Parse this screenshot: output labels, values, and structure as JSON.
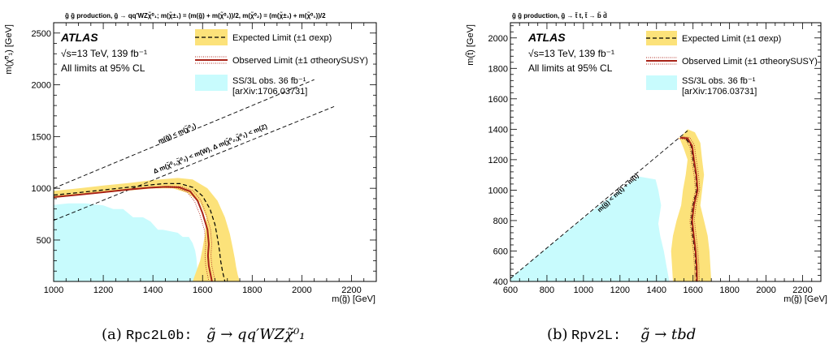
{
  "chart_data": [
    {
      "type": "line",
      "panel_header": "g̃ g̃ production, g̃ → qq′WZχ̃⁰₁; m(χ̃±₁) = (m(g̃) + m(χ̃⁰₁))/2, m(χ̃⁰₂) = (m(χ̃±₁) + m(χ̃⁰₁))/2",
      "caption_label": "(a)",
      "caption_name": "Rpc2L0b:",
      "caption_formula": "g̃ → qq′WZχ̃⁰₁",
      "xlabel": "m(g̃) [GeV]",
      "ylabel": "m(χ̃⁰₁) [GeV]",
      "xlim": [
        1000,
        2300
      ],
      "ylim": [
        100,
        2600
      ],
      "x_ticks": [
        1000,
        1200,
        1400,
        1600,
        1800,
        2000,
        2200
      ],
      "y_ticks": [
        500,
        1000,
        1500,
        2000,
        2500
      ],
      "experiment": "ATLAS",
      "energy": "√s=13 TeV, 139 fb⁻¹",
      "cl_note": "All limits at 95% CL",
      "legend": {
        "placement": "top-right",
        "expected": "Expected Limit (±1 σexp)",
        "observed": "Observed Limit (±1 σtheorySUSY)",
        "previous_line1": "SS/3L obs. 36 fb⁻¹",
        "previous_line2": "[arXiv:1706.03731]"
      },
      "annotations": [
        "m(g̃) < m(χ̃⁰₁)",
        "Δ m(χ̃⁰₁,χ̃⁰₂) < m(W), Δ m(χ̃⁰₂,χ̃⁰₁) < m(Z)"
      ],
      "boundary_lines": [
        {
          "x": [
            1000,
            2050
          ],
          "y": [
            1000,
            2050
          ]
        },
        {
          "x": [
            1000,
            2130
          ],
          "y": [
            690,
            1790
          ]
        }
      ],
      "previous_limit": {
        "x": [
          1000,
          1060,
          1130,
          1200,
          1240,
          1280,
          1300,
          1320,
          1360,
          1390,
          1420,
          1440,
          1500,
          1520,
          1545,
          1560,
          1570,
          1575,
          1578,
          1580,
          1585,
          1590,
          1000
        ],
        "y": [
          840,
          855,
          855,
          835,
          800,
          800,
          760,
          720,
          720,
          680,
          600,
          600,
          570,
          530,
          530,
          470,
          400,
          330,
          250,
          180,
          130,
          100,
          100
        ]
      },
      "expected": {
        "x": [
          1000,
          1100,
          1200,
          1300,
          1380,
          1450,
          1510,
          1560,
          1600,
          1630,
          1650,
          1660,
          1668,
          1673,
          1680,
          1690
        ],
        "y": [
          935,
          958,
          984,
          1010,
          1030,
          1046,
          1045,
          1010,
          925,
          800,
          650,
          520,
          400,
          300,
          200,
          100
        ]
      },
      "expected_band_upper": {
        "x": [
          1000,
          1100,
          1200,
          1300,
          1400,
          1500,
          1560,
          1620,
          1660,
          1690,
          1710,
          1722,
          1730,
          1735,
          1742,
          1750
        ],
        "y": [
          975,
          1000,
          1026,
          1050,
          1080,
          1100,
          1085,
          1000,
          880,
          720,
          560,
          420,
          320,
          240,
          160,
          100
        ]
      },
      "expected_band_lower": {
        "x": [
          1560,
          1575,
          1590,
          1600,
          1610,
          1615,
          1590,
          1540,
          1480,
          1400,
          1300,
          1200,
          1100,
          1000
        ],
        "y": [
          100,
          200,
          300,
          420,
          560,
          720,
          860,
          955,
          1000,
          1000,
          978,
          955,
          932,
          905
        ]
      },
      "observed": {
        "x": [
          1000,
          1100,
          1200,
          1300,
          1380,
          1450,
          1505,
          1550,
          1580,
          1600,
          1620,
          1625,
          1622,
          1625,
          1632,
          1638
        ],
        "y": [
          915,
          938,
          962,
          988,
          1005,
          1014,
          1010,
          970,
          880,
          760,
          600,
          460,
          350,
          250,
          170,
          100
        ]
      },
      "observed_theory_shift": 12
    },
    {
      "type": "line",
      "panel_header": "g̃ g̃ production, g̃ → t̃ t, t̃ → b̃ d̃",
      "caption_label": "(b)",
      "caption_name": "Rpv2L:",
      "caption_formula": "g̃ → tbd",
      "xlabel": "m(g̃) [GeV]",
      "ylabel": "m(t̃) [GeV]",
      "xlim": [
        600,
        2300
      ],
      "ylim": [
        400,
        2100
      ],
      "x_ticks": [
        600,
        800,
        1000,
        1200,
        1400,
        1600,
        1800,
        2000,
        2200
      ],
      "y_ticks": [
        400,
        600,
        800,
        1000,
        1200,
        1400,
        1600,
        1800,
        2000
      ],
      "experiment": "ATLAS",
      "energy": "√s=13 TeV, 139 fb⁻¹",
      "cl_note": "All limits at 95% CL",
      "legend": {
        "placement": "top-right",
        "expected": "Expected Limit (±1 σexp)",
        "observed": "Observed Limit (±1 σtheorySUSY)",
        "previous_line1": "SS/3L obs. 36 fb⁻¹",
        "previous_line2": "[arXiv:1706.03731]"
      },
      "annotations": [
        "m(g̃) < m(t̃) + m(t)"
      ],
      "boundary_lines": [
        {
          "x": [
            600,
            1570
          ],
          "y": [
            420,
            1390
          ]
        }
      ],
      "previous_limit": {
        "x": [
          600,
          1050,
          1300,
          1395,
          1410,
          1425,
          1410,
          1420,
          1440,
          1455,
          1470,
          600
        ],
        "y": [
          420,
          865,
          1090,
          1070,
          1000,
          900,
          780,
          700,
          600,
          500,
          400,
          400
        ]
      },
      "expected": {
        "x": [
          1530,
          1560,
          1590,
          1600,
          1615,
          1620,
          1600,
          1590,
          1598,
          1610,
          1615,
          1618
        ],
        "y": [
          1345,
          1340,
          1290,
          1200,
          1100,
          1000,
          900,
          800,
          700,
          600,
          500,
          400
        ]
      },
      "expected_band_outer": {
        "x": [
          1530,
          1570,
          1610,
          1640,
          1650,
          1660,
          1650,
          1640,
          1660,
          1680,
          1690,
          1700
        ],
        "y": [
          1345,
          1400,
          1380,
          1310,
          1200,
          1100,
          1000,
          900,
          800,
          700,
          600,
          400
        ]
      },
      "expected_band_inner": {
        "x": [
          1520,
          1530,
          1550,
          1570,
          1560,
          1545,
          1535,
          1510,
          1490,
          1480,
          1485,
          1490
        ],
        "y": [
          1345,
          1330,
          1270,
          1200,
          1100,
          1000,
          900,
          800,
          700,
          600,
          500,
          400
        ]
      },
      "observed": {
        "x": [
          1530,
          1570,
          1595,
          1605,
          1618,
          1625,
          1605,
          1595,
          1604,
          1614,
          1620,
          1622
        ],
        "y": [
          1345,
          1340,
          1290,
          1200,
          1100,
          1000,
          900,
          800,
          700,
          600,
          500,
          400
        ]
      },
      "observed_theory_shift": 12
    }
  ]
}
